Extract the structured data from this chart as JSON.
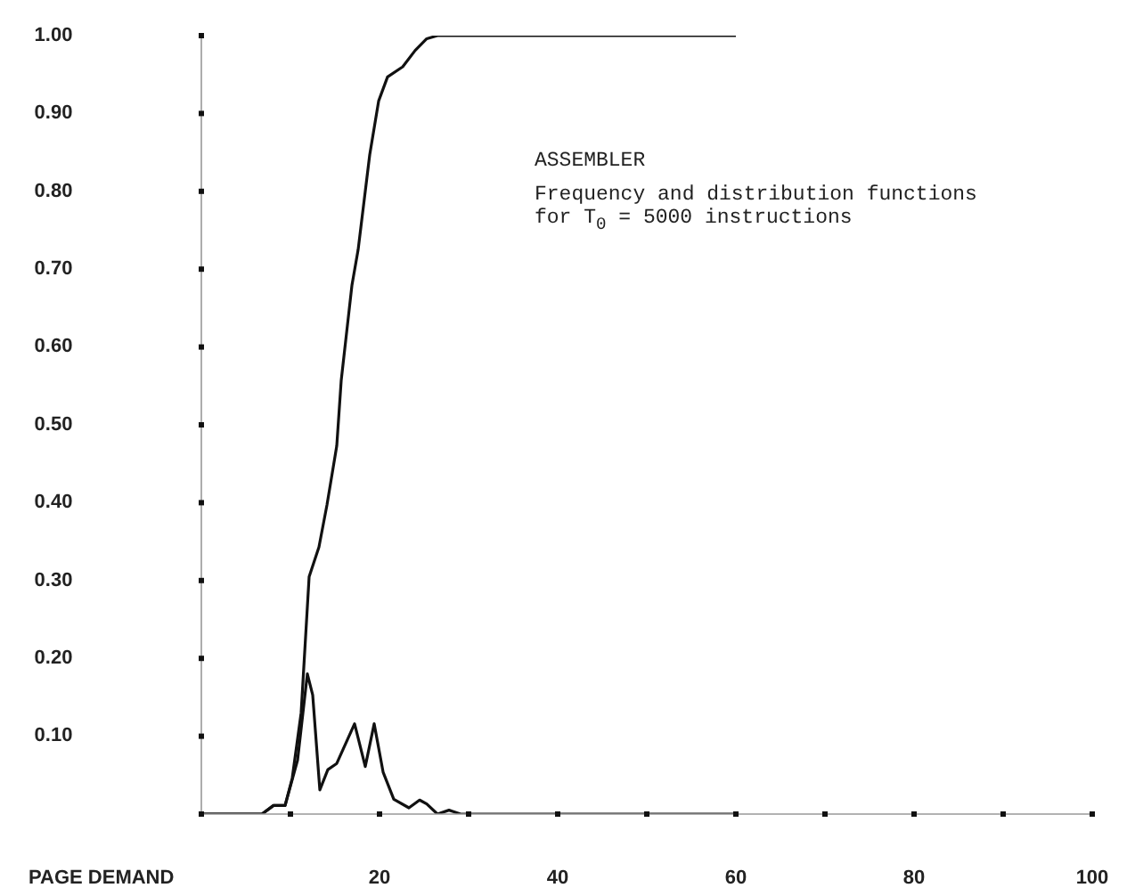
{
  "chart_data": {
    "type": "line",
    "xlabel": "PAGE DEMAND",
    "annotations": [
      "ASSEMBLER",
      "Frequency and distribution functions",
      "for T$_{0}$ = 5000 instructions"
    ],
    "xlim": [
      0,
      100
    ],
    "ylim": [
      0,
      1
    ],
    "xticks": [
      {
        "value": 0,
        "label": null
      },
      {
        "value": 10,
        "label": null
      },
      20,
      {
        "value": 30,
        "label": null
      },
      40,
      {
        "value": 50,
        "label": null
      },
      60,
      {
        "value": 70,
        "label": null
      },
      80,
      {
        "value": 90,
        "label": null
      },
      100
    ],
    "yticks": [
      {
        "value": 0,
        "label": null
      },
      {
        "value": 0.1,
        "label": "0.10"
      },
      {
        "value": 0.2,
        "label": "0.20"
      },
      {
        "value": 0.3,
        "label": "0.30"
      },
      {
        "value": 0.4,
        "label": "0.40"
      },
      {
        "value": 0.5,
        "label": "0.50"
      },
      {
        "value": 0.6,
        "label": "0.60"
      },
      {
        "value": 0.7,
        "label": "0.70"
      },
      {
        "value": 0.8,
        "label": "0.80"
      },
      {
        "value": 0.9,
        "label": "0.90"
      },
      {
        "value": 1,
        "label": "1.00"
      }
    ],
    "grid": false,
    "legend": false,
    "marker": "none",
    "line_style": "solid",
    "series": [
      {
        "color": "#111111",
        "x": [
          0,
          6.8,
          8.1,
          9.4,
          10.8,
          11.9,
          12.5,
          13.3,
          14.2,
          15.2,
          17.2,
          18.4,
          19.4,
          20.4,
          21.6,
          23.3,
          24.5,
          25.3,
          26.5,
          27.8,
          29.1,
          60
        ],
        "values": [
          0,
          0,
          0.011,
          0.011,
          0.069,
          0.18,
          0.153,
          0.031,
          0.057,
          0.065,
          0.116,
          0.061,
          0.116,
          0.054,
          0.019,
          0.008,
          0.018,
          0.013,
          0,
          0.005,
          0,
          0
        ]
      },
      {
        "color": "#111111",
        "x": [
          0,
          6.8,
          8.1,
          9.4,
          10.2,
          11.2,
          12.1,
          13.2,
          14.1,
          15.2,
          15.7,
          16.9,
          17.6,
          18.9,
          19.9,
          20.9,
          22.6,
          24,
          25.3,
          26.5,
          60
        ],
        "values": [
          0,
          0,
          0.011,
          0.011,
          0.046,
          0.13,
          0.305,
          0.343,
          0.397,
          0.473,
          0.557,
          0.679,
          0.725,
          0.847,
          0.916,
          0.947,
          0.96,
          0.981,
          0.996,
          1,
          1
        ]
      }
    ]
  }
}
